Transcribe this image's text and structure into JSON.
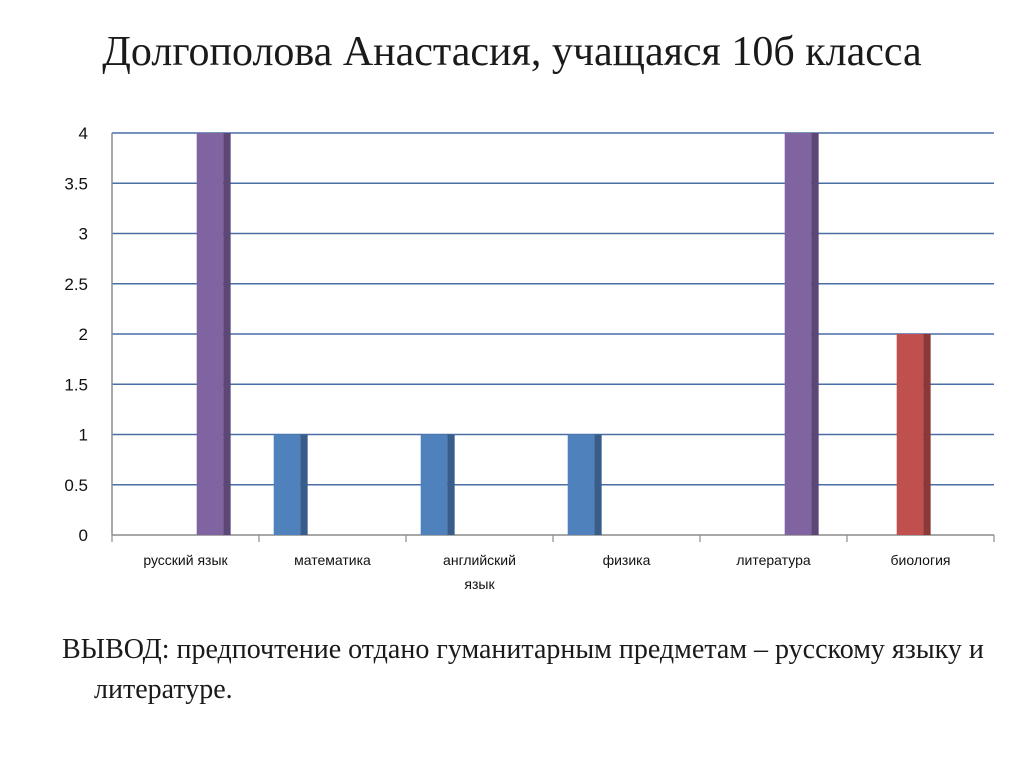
{
  "slide": {
    "title": "Долгополова Анастасия, учащаяся 10б класса",
    "conclusion_label": "ВЫВОД:",
    "conclusion_text": " предпочтение отдано гуманитарным предметам – русскому языку и литературе."
  },
  "chart_data": {
    "type": "bar",
    "title": "",
    "xlabel": "",
    "ylabel": "",
    "ylim": [
      0,
      4
    ],
    "yticks": [
      "0",
      "0.5",
      "1",
      "1.5",
      "2",
      "2.5",
      "3",
      "3.5",
      "4"
    ],
    "grid": true,
    "legend": "none",
    "categories": [
      [
        "русский язык"
      ],
      [
        "математика"
      ],
      [
        "английский",
        "язык"
      ],
      [
        "физика"
      ],
      [
        "литература"
      ],
      [
        "биология"
      ]
    ],
    "series": [
      {
        "values": [
          0,
          1,
          1,
          1,
          0,
          0
        ],
        "color": "#4f81bd",
        "side": "#385d8a"
      },
      {
        "values": [
          0,
          0,
          0,
          0,
          0,
          2
        ],
        "color": "#c0504d",
        "side": "#8c3836"
      },
      {
        "values": [
          4,
          0,
          0,
          0,
          4,
          0
        ],
        "color": "#8064a2",
        "side": "#5c4776"
      }
    ],
    "colors": {
      "grid": "#4a6fa5",
      "axis": "#8c8c8c"
    }
  }
}
